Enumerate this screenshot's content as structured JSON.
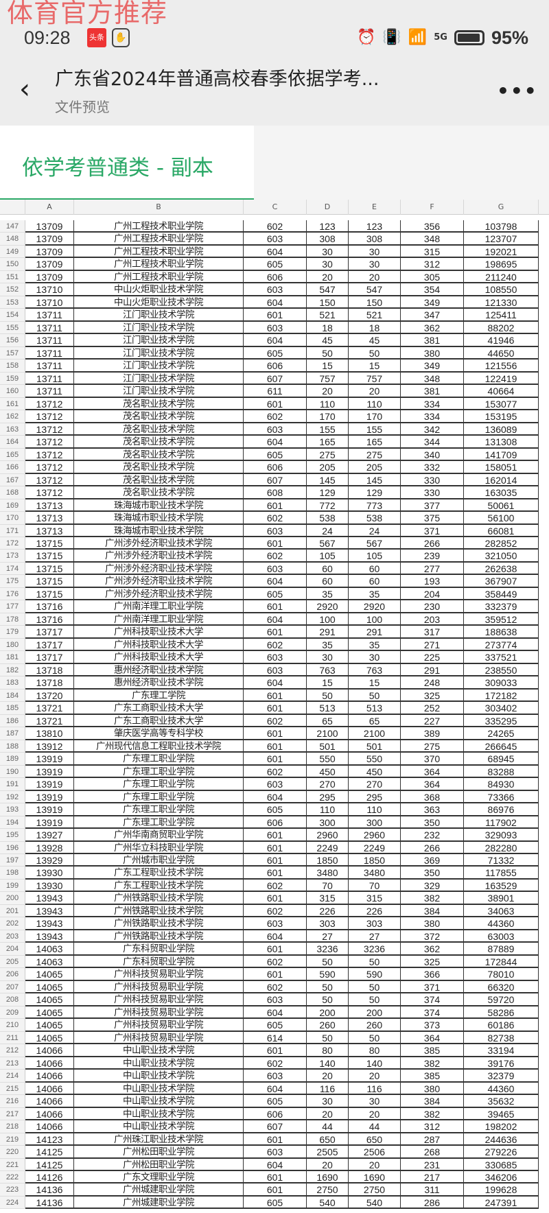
{
  "watermark": "体育官方推荐",
  "status": {
    "time": "09:28",
    "app_badge": "头条",
    "network": "5G",
    "battery": "95%"
  },
  "header": {
    "title": "广东省2024年普通高校春季依据学考...",
    "subtitle": "文件预览"
  },
  "tab": {
    "label": "依学考普通类 - 副本",
    "accent": "#2aa866"
  },
  "columns": [
    "A",
    "B",
    "C",
    "D",
    "E",
    "F",
    "G"
  ],
  "rows": [
    [
      "147",
      "13709",
      "广州工程技术职业学院",
      "602",
      "123",
      "123",
      "356",
      "103798"
    ],
    [
      "148",
      "13709",
      "广州工程技术职业学院",
      "603",
      "308",
      "308",
      "348",
      "123707"
    ],
    [
      "149",
      "13709",
      "广州工程技术职业学院",
      "604",
      "30",
      "30",
      "315",
      "192021"
    ],
    [
      "150",
      "13709",
      "广州工程技术职业学院",
      "605",
      "30",
      "30",
      "312",
      "198695"
    ],
    [
      "151",
      "13709",
      "广州工程技术职业学院",
      "606",
      "20",
      "20",
      "305",
      "211240"
    ],
    [
      "152",
      "13710",
      "中山火炬职业技术学院",
      "603",
      "547",
      "547",
      "354",
      "108550"
    ],
    [
      "153",
      "13710",
      "中山火炬职业技术学院",
      "604",
      "150",
      "150",
      "349",
      "121330"
    ],
    [
      "154",
      "13711",
      "江门职业技术学院",
      "601",
      "521",
      "521",
      "347",
      "125411"
    ],
    [
      "155",
      "13711",
      "江门职业技术学院",
      "603",
      "18",
      "18",
      "362",
      "88202"
    ],
    [
      "156",
      "13711",
      "江门职业技术学院",
      "604",
      "45",
      "45",
      "381",
      "41946"
    ],
    [
      "157",
      "13711",
      "江门职业技术学院",
      "605",
      "50",
      "50",
      "380",
      "44650"
    ],
    [
      "158",
      "13711",
      "江门职业技术学院",
      "606",
      "15",
      "15",
      "349",
      "121556"
    ],
    [
      "159",
      "13711",
      "江门职业技术学院",
      "607",
      "757",
      "757",
      "348",
      "122419"
    ],
    [
      "160",
      "13711",
      "江门职业技术学院",
      "611",
      "20",
      "20",
      "381",
      "40664"
    ],
    [
      "161",
      "13712",
      "茂名职业技术学院",
      "601",
      "110",
      "110",
      "334",
      "153077"
    ],
    [
      "162",
      "13712",
      "茂名职业技术学院",
      "602",
      "170",
      "170",
      "334",
      "153195"
    ],
    [
      "163",
      "13712",
      "茂名职业技术学院",
      "603",
      "155",
      "155",
      "342",
      "136089"
    ],
    [
      "164",
      "13712",
      "茂名职业技术学院",
      "604",
      "165",
      "165",
      "344",
      "131308"
    ],
    [
      "165",
      "13712",
      "茂名职业技术学院",
      "605",
      "275",
      "275",
      "340",
      "141709"
    ],
    [
      "166",
      "13712",
      "茂名职业技术学院",
      "606",
      "205",
      "205",
      "332",
      "158051"
    ],
    [
      "167",
      "13712",
      "茂名职业技术学院",
      "607",
      "145",
      "145",
      "330",
      "162014"
    ],
    [
      "168",
      "13712",
      "茂名职业技术学院",
      "608",
      "129",
      "129",
      "330",
      "163035"
    ],
    [
      "169",
      "13713",
      "珠海城市职业技术学院",
      "601",
      "772",
      "773",
      "377",
      "50061"
    ],
    [
      "170",
      "13713",
      "珠海城市职业技术学院",
      "602",
      "538",
      "538",
      "375",
      "56100"
    ],
    [
      "171",
      "13713",
      "珠海城市职业技术学院",
      "603",
      "24",
      "24",
      "371",
      "66081"
    ],
    [
      "172",
      "13715",
      "广州涉外经济职业技术学院",
      "601",
      "567",
      "567",
      "266",
      "282852"
    ],
    [
      "173",
      "13715",
      "广州涉外经济职业技术学院",
      "602",
      "105",
      "105",
      "239",
      "321050"
    ],
    [
      "174",
      "13715",
      "广州涉外经济职业技术学院",
      "603",
      "60",
      "60",
      "277",
      "262638"
    ],
    [
      "175",
      "13715",
      "广州涉外经济职业技术学院",
      "604",
      "60",
      "60",
      "193",
      "367907"
    ],
    [
      "176",
      "13715",
      "广州涉外经济职业技术学院",
      "605",
      "35",
      "35",
      "204",
      "358449"
    ],
    [
      "177",
      "13716",
      "广州南洋理工职业学院",
      "601",
      "2920",
      "2920",
      "230",
      "332379"
    ],
    [
      "178",
      "13716",
      "广州南洋理工职业学院",
      "604",
      "100",
      "100",
      "203",
      "359512"
    ],
    [
      "179",
      "13717",
      "广州科技职业技术大学",
      "601",
      "291",
      "291",
      "317",
      "188638"
    ],
    [
      "180",
      "13717",
      "广州科技职业技术大学",
      "602",
      "35",
      "35",
      "271",
      "273774"
    ],
    [
      "181",
      "13717",
      "广州科技职业技术大学",
      "603",
      "30",
      "30",
      "225",
      "337521"
    ],
    [
      "182",
      "13718",
      "惠州经济职业技术学院",
      "603",
      "763",
      "763",
      "291",
      "238550"
    ],
    [
      "183",
      "13718",
      "惠州经济职业技术学院",
      "604",
      "15",
      "15",
      "248",
      "309033"
    ],
    [
      "184",
      "13720",
      "广东理工学院",
      "601",
      "50",
      "50",
      "325",
      "172182"
    ],
    [
      "185",
      "13721",
      "广东工商职业技术大学",
      "601",
      "513",
      "513",
      "252",
      "303402"
    ],
    [
      "186",
      "13721",
      "广东工商职业技术大学",
      "602",
      "65",
      "65",
      "227",
      "335295"
    ],
    [
      "187",
      "13810",
      "肇庆医学高等专科学校",
      "601",
      "2100",
      "2100",
      "389",
      "24265"
    ],
    [
      "188",
      "13912",
      "广州现代信息工程职业技术学院",
      "601",
      "501",
      "501",
      "275",
      "266645"
    ],
    [
      "189",
      "13919",
      "广东理工职业学院",
      "601",
      "550",
      "550",
      "370",
      "68945"
    ],
    [
      "190",
      "13919",
      "广东理工职业学院",
      "602",
      "450",
      "450",
      "364",
      "83288"
    ],
    [
      "191",
      "13919",
      "广东理工职业学院",
      "603",
      "270",
      "270",
      "364",
      "84930"
    ],
    [
      "192",
      "13919",
      "广东理工职业学院",
      "604",
      "295",
      "295",
      "368",
      "73366"
    ],
    [
      "193",
      "13919",
      "广东理工职业学院",
      "605",
      "110",
      "110",
      "363",
      "86976"
    ],
    [
      "194",
      "13919",
      "广东理工职业学院",
      "606",
      "300",
      "300",
      "350",
      "117902"
    ],
    [
      "195",
      "13927",
      "广州华南商贸职业学院",
      "601",
      "2960",
      "2960",
      "232",
      "329093"
    ],
    [
      "196",
      "13928",
      "广州华立科技职业学院",
      "601",
      "2249",
      "2249",
      "266",
      "282280"
    ],
    [
      "197",
      "13929",
      "广州城市职业学院",
      "601",
      "1850",
      "1850",
      "369",
      "71332"
    ],
    [
      "198",
      "13930",
      "广东工程职业技术学院",
      "601",
      "3480",
      "3480",
      "350",
      "117855"
    ],
    [
      "199",
      "13930",
      "广东工程职业技术学院",
      "602",
      "70",
      "70",
      "329",
      "163529"
    ],
    [
      "200",
      "13943",
      "广州铁路职业技术学院",
      "601",
      "315",
      "315",
      "382",
      "38901"
    ],
    [
      "201",
      "13943",
      "广州铁路职业技术学院",
      "602",
      "226",
      "226",
      "384",
      "34063"
    ],
    [
      "202",
      "13943",
      "广州铁路职业技术学院",
      "603",
      "303",
      "303",
      "380",
      "44360"
    ],
    [
      "203",
      "13943",
      "广州铁路职业技术学院",
      "604",
      "27",
      "27",
      "372",
      "63003"
    ],
    [
      "204",
      "14063",
      "广东科贸职业学院",
      "601",
      "3236",
      "3236",
      "362",
      "87889"
    ],
    [
      "205",
      "14063",
      "广东科贸职业学院",
      "602",
      "50",
      "50",
      "325",
      "172844"
    ],
    [
      "206",
      "14065",
      "广州科技贸易职业学院",
      "601",
      "590",
      "590",
      "366",
      "78010"
    ],
    [
      "207",
      "14065",
      "广州科技贸易职业学院",
      "602",
      "50",
      "50",
      "371",
      "66320"
    ],
    [
      "208",
      "14065",
      "广州科技贸易职业学院",
      "603",
      "50",
      "50",
      "374",
      "59720"
    ],
    [
      "209",
      "14065",
      "广州科技贸易职业学院",
      "604",
      "200",
      "200",
      "374",
      "58286"
    ],
    [
      "210",
      "14065",
      "广州科技贸易职业学院",
      "605",
      "260",
      "260",
      "373",
      "60186"
    ],
    [
      "211",
      "14065",
      "广州科技贸易职业学院",
      "614",
      "50",
      "50",
      "364",
      "82738"
    ],
    [
      "212",
      "14066",
      "中山职业技术学院",
      "601",
      "80",
      "80",
      "385",
      "33194"
    ],
    [
      "213",
      "14066",
      "中山职业技术学院",
      "602",
      "140",
      "140",
      "382",
      "39176"
    ],
    [
      "214",
      "14066",
      "中山职业技术学院",
      "603",
      "20",
      "20",
      "385",
      "32379"
    ],
    [
      "215",
      "14066",
      "中山职业技术学院",
      "604",
      "116",
      "116",
      "380",
      "44360"
    ],
    [
      "216",
      "14066",
      "中山职业技术学院",
      "605",
      "30",
      "30",
      "384",
      "35632"
    ],
    [
      "217",
      "14066",
      "中山职业技术学院",
      "606",
      "20",
      "20",
      "382",
      "39465"
    ],
    [
      "218",
      "14066",
      "中山职业技术学院",
      "607",
      "44",
      "44",
      "312",
      "198202"
    ],
    [
      "219",
      "14123",
      "广州珠江职业技术学院",
      "601",
      "650",
      "650",
      "287",
      "244636"
    ],
    [
      "220",
      "14125",
      "广州松田职业学院",
      "603",
      "2505",
      "2506",
      "268",
      "279226"
    ],
    [
      "221",
      "14125",
      "广州松田职业学院",
      "604",
      "20",
      "20",
      "231",
      "330685"
    ],
    [
      "222",
      "14126",
      "广东文理职业学院",
      "601",
      "1690",
      "1690",
      "217",
      "346206"
    ],
    [
      "223",
      "14136",
      "广州城建职业学院",
      "601",
      "2750",
      "2750",
      "311",
      "199628"
    ],
    [
      "224",
      "14136",
      "广州城建职业学院",
      "605",
      "540",
      "540",
      "286",
      "247391"
    ]
  ]
}
